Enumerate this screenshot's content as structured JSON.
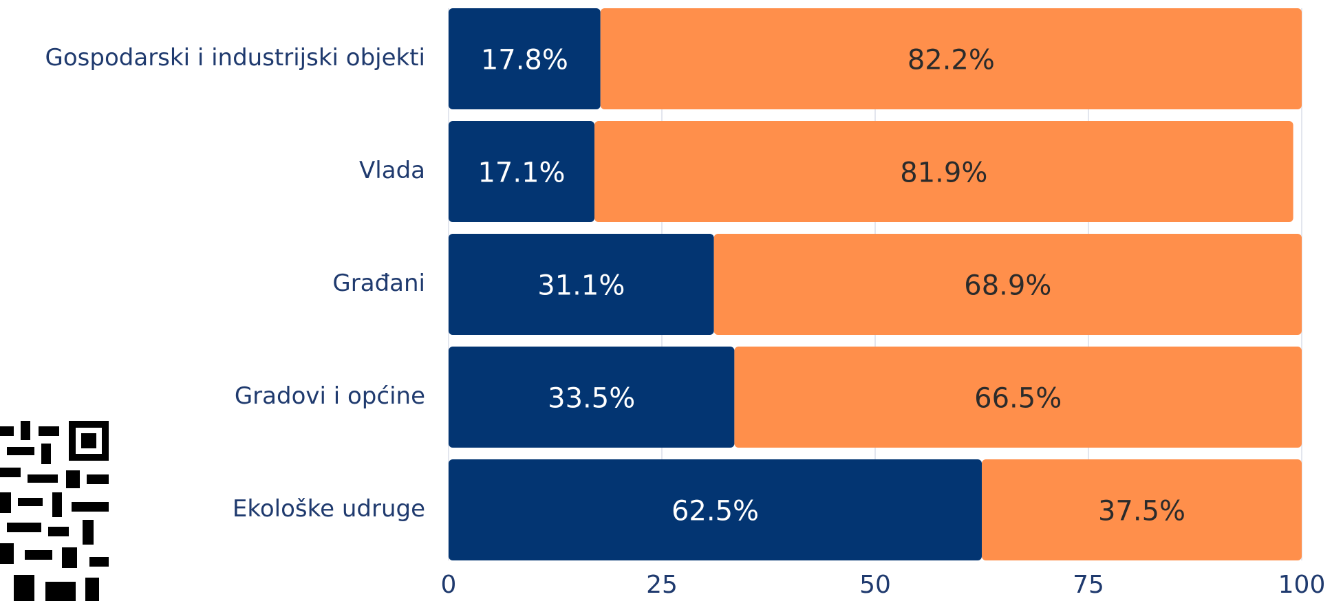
{
  "chart_data": {
    "type": "stacked_barh",
    "categories": [
      "Gospodarski i industrijski objekti",
      "Vlada",
      "Građani",
      "Gradovi i općine",
      "Ekološke udruge"
    ],
    "series": [
      {
        "color": "#033572",
        "values": [
          17.8,
          17.1,
          31.1,
          33.5,
          62.5
        ],
        "value_labels": [
          "17.8%",
          "17.1%",
          "31.1%",
          "33.5%",
          "62.5%"
        ]
      },
      {
        "color": "#ff8f4b",
        "values": [
          82.2,
          81.9,
          68.9,
          66.5,
          37.5
        ],
        "value_labels": [
          "82.2%",
          "81.9%",
          "68.9%",
          "66.5%",
          "37.5%"
        ]
      }
    ],
    "xlim": [
      0,
      100
    ],
    "xticks": [
      0,
      25,
      50,
      75,
      100
    ],
    "grid": true
  }
}
